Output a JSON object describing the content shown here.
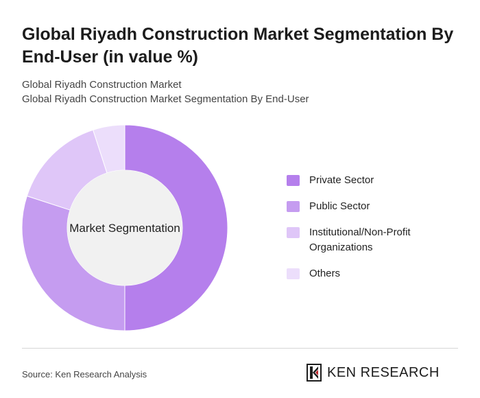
{
  "header": {
    "title": "Global Riyadh Construction Market Segmentation By End-User (in value %)",
    "subtitle_line1": "Global Riyadh Construction Market",
    "subtitle_line2": "Global Riyadh Construction Market Segmentation By End-User"
  },
  "chart_data": {
    "type": "pie",
    "donut": true,
    "center_label": "Market Segmentation",
    "legend_position": "right",
    "categories": [
      "Private Sector",
      "Public Sector",
      "Institutional/Non-Profit Organizations",
      "Others"
    ],
    "values": [
      50,
      30,
      15,
      5
    ],
    "colors": [
      "#b57fec",
      "#c59cf0",
      "#dfc6f8",
      "#ecdefb"
    ]
  },
  "footer": {
    "source": "Source: Ken Research Analysis",
    "logo_text": "KEN RESEARCH",
    "logo_icon": "ken-research-logo-icon"
  }
}
